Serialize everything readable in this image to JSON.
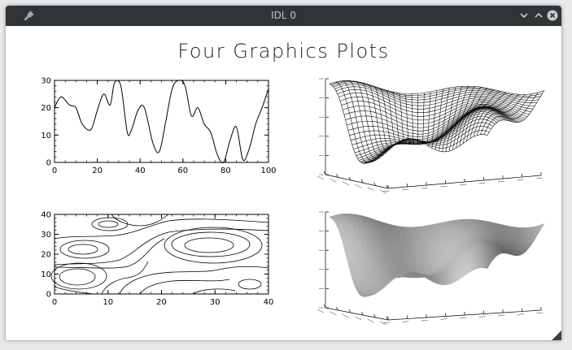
{
  "window": {
    "title": "IDL 0",
    "icons": [
      "pin-icon",
      "minimize-icon",
      "maximize-icon",
      "close-icon"
    ],
    "titlebar_color": "#2f3437"
  },
  "page": {
    "title": "Four Graphics Plots"
  },
  "chart_data": [
    {
      "type": "line",
      "title": "",
      "xlabel": "",
      "ylabel": "",
      "xlim": [
        0,
        100
      ],
      "ylim": [
        0,
        30
      ],
      "xticks": [
        "0",
        "20",
        "40",
        "60",
        "80",
        "100"
      ],
      "yticks": [
        "0",
        "10",
        "20",
        "30"
      ],
      "x": [
        0,
        3,
        7,
        10,
        13,
        17,
        20,
        23,
        26,
        28,
        31,
        34,
        36,
        39,
        42,
        46,
        49,
        52,
        55,
        58,
        61,
        64,
        67,
        70,
        73,
        76,
        79,
        82,
        85,
        88,
        91,
        94,
        97,
        100
      ],
      "y": [
        20,
        24,
        21,
        20,
        14,
        12,
        19,
        25,
        21,
        29,
        28,
        11,
        12,
        19,
        20,
        7,
        4,
        15,
        27,
        30,
        28,
        17,
        20,
        14,
        11,
        3,
        0,
        8,
        13,
        1,
        5,
        14,
        20,
        27
      ]
    },
    {
      "type": "surface-mesh",
      "title": "",
      "style": "wireframe"
    },
    {
      "type": "contour",
      "title": "",
      "xlim": [
        0,
        40
      ],
      "ylim": [
        0,
        40
      ],
      "xticks": [
        "0",
        "10",
        "20",
        "30",
        "40"
      ],
      "yticks": [
        "0",
        "10",
        "20",
        "30",
        "40"
      ]
    },
    {
      "type": "surface-shaded",
      "title": "",
      "style": "shaded"
    }
  ]
}
